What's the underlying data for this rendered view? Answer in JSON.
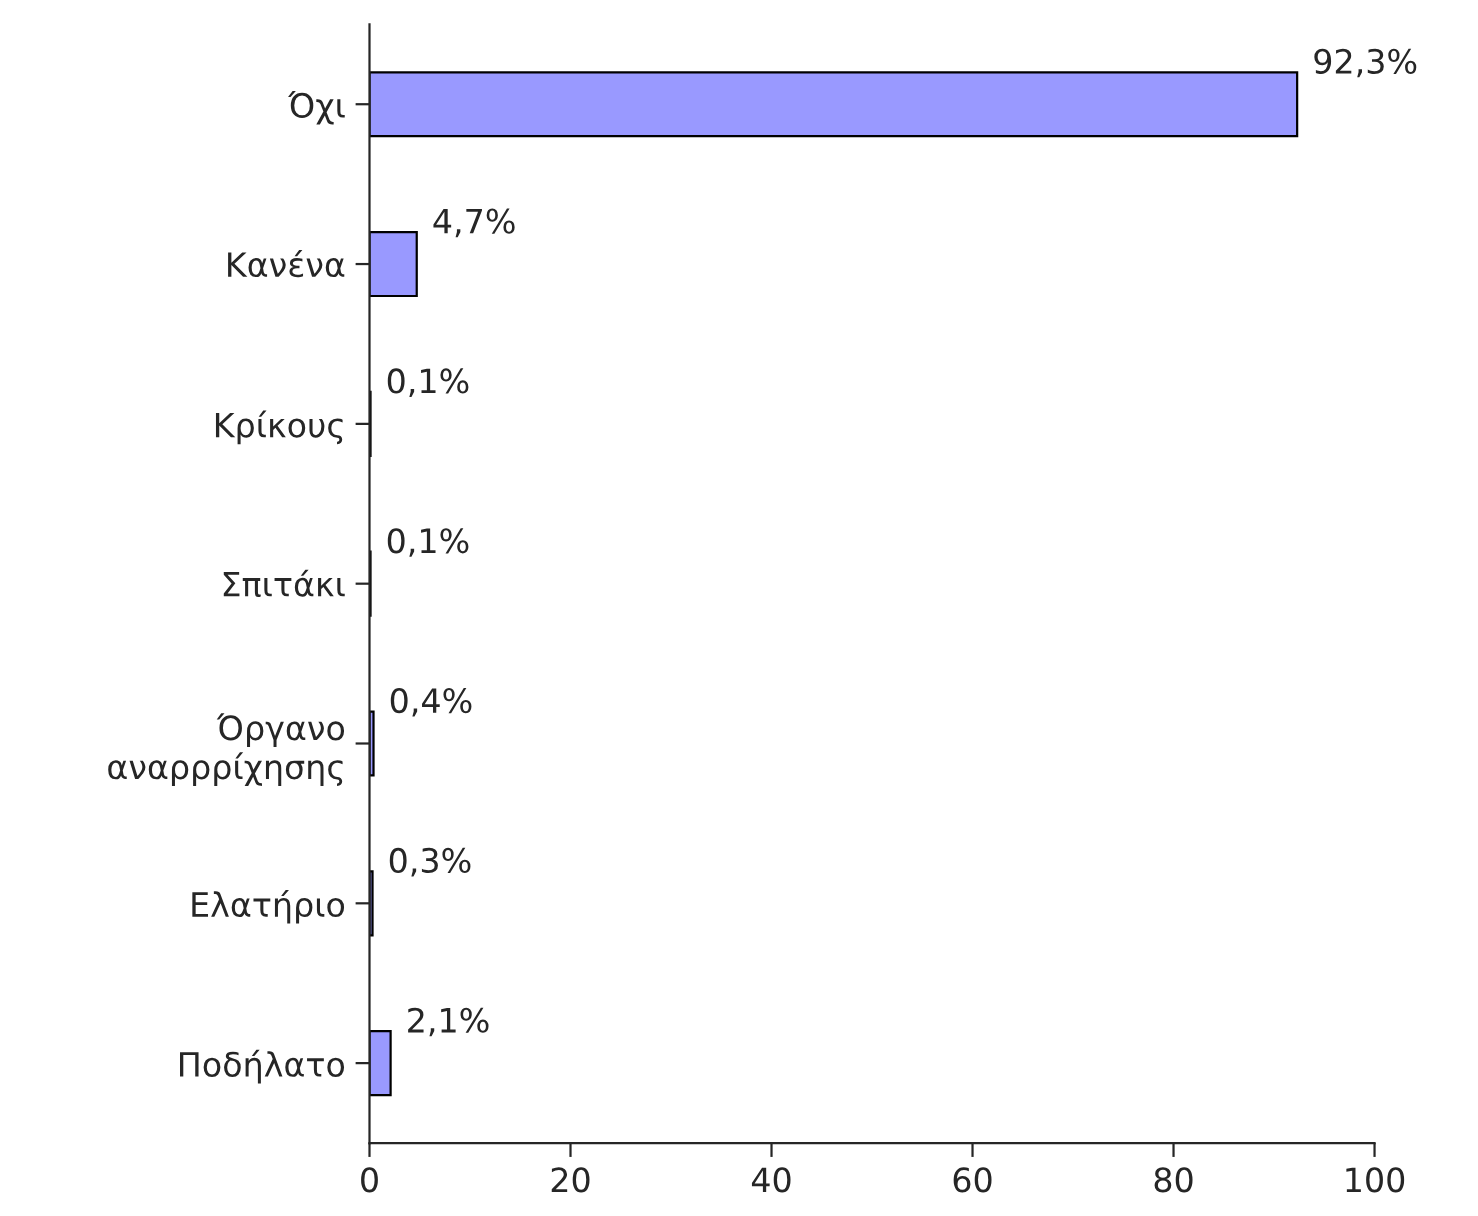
{
  "chart_data": {
    "type": "bar",
    "orientation": "horizontal",
    "categories": [
      "Όχι",
      "Κανένα",
      "Κρίκους",
      "Σπιτάκι",
      "Όργανο\nαναρρρίχησης",
      "Ελατήριο",
      "Ποδήλατο"
    ],
    "values": [
      92.3,
      4.7,
      0.1,
      0.1,
      0.4,
      0.3,
      2.1
    ],
    "value_labels": [
      "92,3%",
      "4,7%",
      "0,1%",
      "0,1%",
      "0,4%",
      "0,3%",
      "2,1%"
    ],
    "color": "#9999ff",
    "xlim": [
      0,
      100
    ],
    "xticks": [
      0,
      20,
      40,
      60,
      80,
      100
    ],
    "grid": false
  }
}
